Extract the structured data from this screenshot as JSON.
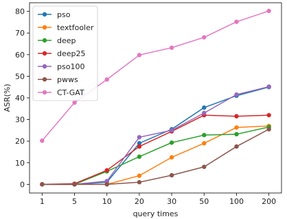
{
  "chart_data": {
    "type": "line",
    "title": "",
    "xlabel": "query times",
    "ylabel": "ASR(%)",
    "x_scale": "categorical",
    "categories": [
      "1",
      "5",
      "10",
      "20",
      "30",
      "50",
      "100",
      "200"
    ],
    "ylim": [
      -4,
      84
    ],
    "yticks": [
      0,
      10,
      20,
      30,
      40,
      50,
      60,
      70,
      80
    ],
    "grid": false,
    "legend_position": "top-left",
    "series": [
      {
        "name": "pso",
        "color": "#1f77b4",
        "values": [
          0,
          0,
          1,
          19,
          25.5,
          35.5,
          41,
          45
        ]
      },
      {
        "name": "textfooler",
        "color": "#ff7f0e",
        "values": [
          0,
          0,
          0,
          4,
          12.5,
          19,
          26.3,
          27
        ]
      },
      {
        "name": "deep",
        "color": "#2ca02c",
        "values": [
          0,
          0,
          6,
          12.8,
          19.3,
          22.8,
          23.2,
          26.5
        ]
      },
      {
        "name": "deep25",
        "color": "#d62728",
        "values": [
          0,
          0.3,
          6.5,
          17.5,
          24.5,
          32,
          31.5,
          32
        ]
      },
      {
        "name": "pso100",
        "color": "#9467bd",
        "values": [
          0,
          0,
          1.5,
          21.8,
          25,
          33,
          41.5,
          45.2
        ]
      },
      {
        "name": "pwws",
        "color": "#8c564b",
        "values": [
          0,
          0,
          0,
          1,
          4.2,
          8.1,
          17.5,
          25.5
        ]
      },
      {
        "name": "CT-GAT",
        "color": "#e377c2",
        "values": [
          20.2,
          37.8,
          48.5,
          59.8,
          63.2,
          68,
          75.2,
          80.2
        ]
      }
    ]
  }
}
